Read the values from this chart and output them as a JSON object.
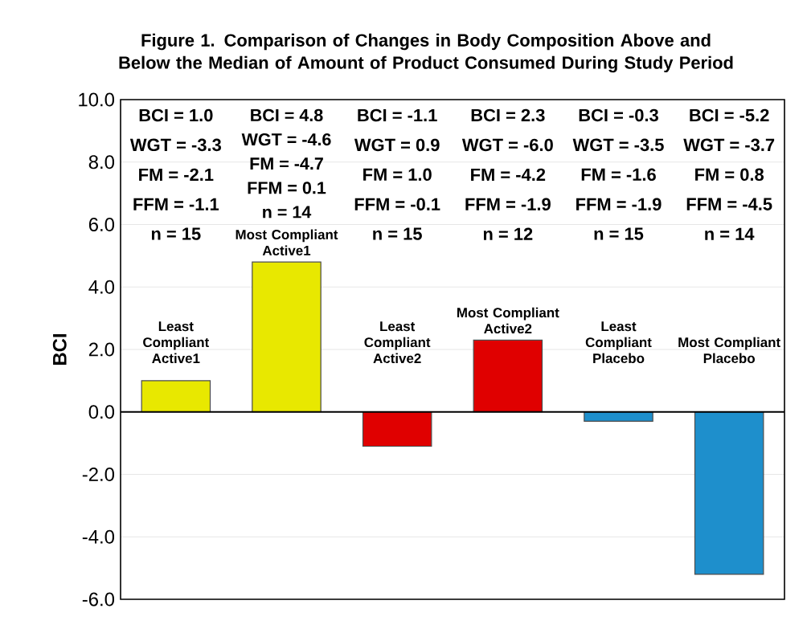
{
  "chart_data": {
    "type": "bar",
    "title": "Figure 1. Comparison of Changes in Body Composition Above and Below the Median of Amount of Product Consumed During Study Period",
    "ylabel": "BCI",
    "categories": [
      "Least Compliant Active1",
      "Most Compliant Active1",
      "Least Compliant Active2",
      "Most Compliant Active2",
      "Least Compliant Placebo",
      "Most Compliant Placebo"
    ],
    "values": [
      1.0,
      4.8,
      -1.1,
      2.3,
      -0.3,
      -5.2
    ],
    "colors": [
      "#e8e800",
      "#e8e800",
      "#e00000",
      "#e00000",
      "#1e8fcc",
      "#1e8fcc"
    ],
    "ylim": [
      -6,
      10
    ],
    "yticks": [
      {
        "value": -6,
        "label": "-6.0"
      },
      {
        "value": -4,
        "label": "-4.0"
      },
      {
        "value": -2,
        "label": "-2.0"
      },
      {
        "value": 0,
        "label": "0.0"
      },
      {
        "value": 2,
        "label": "2.0"
      },
      {
        "value": 4,
        "label": "4.0"
      },
      {
        "value": 6,
        "label": "6.0"
      },
      {
        "value": 8,
        "label": "8.0"
      },
      {
        "value": 10,
        "label": "10.0"
      }
    ],
    "grid": true,
    "ref_lines": [
      {
        "axis": "y",
        "value": 0,
        "color": "#000000"
      }
    ],
    "annotations": [
      "BCI = 1.0",
      "WGT = -3.3",
      "FM = -2.1",
      "FFM = -1.1",
      "n = 15",
      "BCI = 4.8",
      "WGT = -4.6",
      "FM = -4.7",
      "FFM = 0.1",
      "n = 14",
      "BCI = -1.1",
      "WGT = 0.9",
      "FM = 1.0",
      "FFM = -0.1",
      "n = 15",
      "BCI = 2.3",
      "WGT = -6.0",
      "FM = -4.2",
      "FFM = -1.9",
      "n = 12",
      "BCI = -0.3",
      "WGT = -3.5",
      "FM = -1.6",
      "FFM = -1.9",
      "n = 15",
      "BCI = -5.2",
      "WGT = -3.7",
      "FM = 0.8",
      "FFM = -4.5",
      "n = 14"
    ]
  }
}
